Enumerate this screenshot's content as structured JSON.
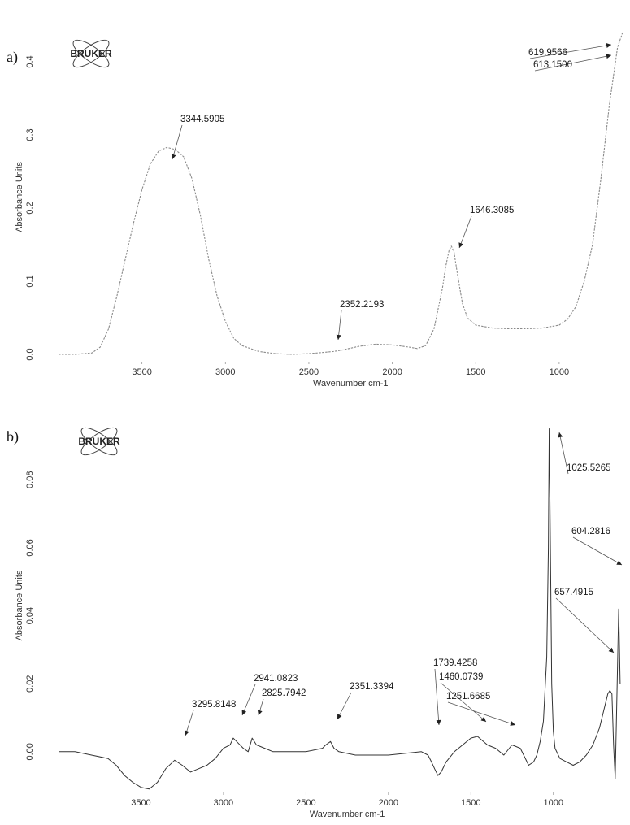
{
  "chart_data": [
    {
      "type": "line",
      "panel_label": "a)",
      "logo": "BRUKER",
      "xlabel": "Wavenumber cm-1",
      "ylabel": "Absorbance Units",
      "xlim": [
        4000,
        600
      ],
      "ylim": [
        -0.01,
        0.44
      ],
      "x_reversed": true,
      "grid": false,
      "xticks": [
        3500,
        3000,
        2500,
        2000,
        1500,
        1000
      ],
      "yticks": [
        "0.0",
        "0.1",
        "0.2",
        "0.3",
        "0.4"
      ],
      "line_color": "#8a8a8a",
      "series": [
        {
          "x": [
            4000,
            3900,
            3800,
            3750,
            3700,
            3650,
            3600,
            3550,
            3500,
            3450,
            3400,
            3350,
            3300,
            3250,
            3200,
            3150,
            3100,
            3050,
            3000,
            2950,
            2900,
            2800,
            2700,
            2600,
            2500,
            2400,
            2352,
            2300,
            2200,
            2100,
            2000,
            1900,
            1850,
            1800,
            1750,
            1700,
            1680,
            1660,
            1646,
            1630,
            1610,
            1580,
            1550,
            1500,
            1400,
            1300,
            1200,
            1100,
            1000,
            950,
            900,
            850,
            800,
            750,
            700,
            650,
            620
          ],
          "y": [
            0.0,
            0.0,
            0.002,
            0.01,
            0.035,
            0.08,
            0.13,
            0.18,
            0.225,
            0.26,
            0.278,
            0.283,
            0.28,
            0.27,
            0.24,
            0.19,
            0.13,
            0.08,
            0.045,
            0.022,
            0.012,
            0.004,
            0.001,
            0.0,
            0.001,
            0.003,
            0.004,
            0.006,
            0.011,
            0.014,
            0.013,
            0.01,
            0.008,
            0.012,
            0.035,
            0.09,
            0.12,
            0.142,
            0.148,
            0.14,
            0.11,
            0.07,
            0.05,
            0.04,
            0.036,
            0.035,
            0.035,
            0.036,
            0.04,
            0.048,
            0.065,
            0.1,
            0.15,
            0.24,
            0.34,
            0.42,
            0.44
          ]
        }
      ],
      "annotations": [
        {
          "text": "3344.5905",
          "x": 3344,
          "y": 0.283
        },
        {
          "text": "1646.3085",
          "x": 1646,
          "y": 0.148
        },
        {
          "text": "2352.2193",
          "x": 2352,
          "y": 0.004
        },
        {
          "text": "619.9566",
          "x": 620,
          "y": 0.44
        },
        {
          "text": "613.1500",
          "x": 613,
          "y": 0.43
        }
      ]
    },
    {
      "type": "line",
      "panel_label": "b)",
      "logo": "BRUKER",
      "xlabel": "Wavenumber cm-1",
      "ylabel": "Absorbance Units",
      "xlim": [
        4000,
        560
      ],
      "ylim": [
        -0.012,
        0.098
      ],
      "x_reversed": true,
      "grid": false,
      "xticks": [
        3500,
        3000,
        2500,
        2000,
        1500,
        1000
      ],
      "yticks": [
        "0.00",
        "0.02",
        "0.04",
        "0.06",
        "0.08"
      ],
      "line_color": "#333333",
      "series": [
        {
          "x": [
            4000,
            3900,
            3800,
            3700,
            3650,
            3600,
            3550,
            3500,
            3450,
            3400,
            3350,
            3296,
            3250,
            3200,
            3150,
            3100,
            3050,
            3000,
            2960,
            2941,
            2920,
            2880,
            2850,
            2826,
            2800,
            2750,
            2700,
            2600,
            2500,
            2400,
            2380,
            2351,
            2330,
            2300,
            2200,
            2100,
            2000,
            1900,
            1800,
            1760,
            1739,
            1720,
            1700,
            1680,
            1650,
            1600,
            1550,
            1500,
            1460,
            1400,
            1350,
            1300,
            1251,
            1200,
            1150,
            1120,
            1100,
            1080,
            1060,
            1040,
            1030,
            1025,
            1020,
            1010,
            1000,
            990,
            960,
            920,
            880,
            840,
            800,
            760,
            720,
            690,
            670,
            657,
            645,
            635,
            625,
            615,
            604,
            595
          ],
          "y": [
            0.0,
            0.0,
            -0.001,
            -0.002,
            -0.004,
            -0.007,
            -0.009,
            -0.0105,
            -0.011,
            -0.009,
            -0.005,
            -0.0025,
            -0.004,
            -0.006,
            -0.005,
            -0.004,
            -0.002,
            0.001,
            0.002,
            0.004,
            0.003,
            0.001,
            0.0,
            0.004,
            0.002,
            0.001,
            0.0,
            0.0,
            0.0,
            0.001,
            0.002,
            0.003,
            0.001,
            0.0,
            -0.001,
            -0.001,
            -0.001,
            -0.0005,
            0.0,
            -0.001,
            -0.003,
            -0.005,
            -0.007,
            -0.006,
            -0.003,
            0.0,
            0.002,
            0.004,
            0.0045,
            0.002,
            0.001,
            -0.001,
            0.002,
            0.001,
            -0.004,
            -0.003,
            -0.001,
            0.003,
            0.009,
            0.028,
            0.06,
            0.095,
            0.07,
            0.02,
            0.006,
            0.001,
            -0.002,
            -0.003,
            -0.004,
            -0.003,
            -0.001,
            0.002,
            0.007,
            0.013,
            0.017,
            0.018,
            0.017,
            0.002,
            -0.008,
            0.015,
            0.042,
            0.02
          ]
        }
      ],
      "annotations": [
        {
          "text": "1025.5265",
          "x": 1025,
          "y": 0.095
        },
        {
          "text": "604.2816",
          "x": 604,
          "y": 0.042
        },
        {
          "text": "657.4915",
          "x": 657,
          "y": 0.018
        },
        {
          "text": "1739.4258",
          "x": 1739,
          "y": -0.003
        },
        {
          "text": "1460.0739",
          "x": 1460,
          "y": 0.0045
        },
        {
          "text": "1251.6685",
          "x": 1251,
          "y": 0.002
        },
        {
          "text": "2941.0823",
          "x": 2941,
          "y": 0.004
        },
        {
          "text": "2825.7942",
          "x": 2826,
          "y": 0.004
        },
        {
          "text": "2351.3394",
          "x": 2351,
          "y": 0.003
        },
        {
          "text": "3295.8148",
          "x": 3296,
          "y": -0.0025
        }
      ]
    }
  ]
}
